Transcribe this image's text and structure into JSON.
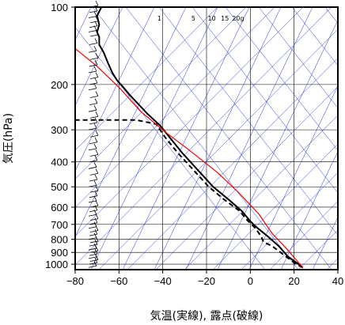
{
  "chart_data": {
    "type": "line",
    "diagram": "skew-t",
    "xlabel": "気温(実線), 露点(破線)",
    "ylabel": "気圧(hPa)",
    "xlim": [
      -80,
      40
    ],
    "ylim": [
      1050,
      100
    ],
    "y_scale": "log",
    "x_ticks": [
      "−80",
      "−60",
      "−40",
      "−20",
      "0",
      "20",
      "40"
    ],
    "x_tick_values": [
      -80,
      -60,
      -40,
      -20,
      0,
      20,
      40
    ],
    "y_ticks": [
      "100",
      "200",
      "300",
      "400",
      "500",
      "600",
      "700",
      "800",
      "900",
      "1000"
    ],
    "y_tick_values": [
      100,
      200,
      300,
      400,
      500,
      600,
      700,
      800,
      900,
      1000
    ],
    "mixing_ratio_labels": [
      "1",
      "5",
      "10",
      "15",
      "20g"
    ],
    "colors": {
      "temperature": "#000000",
      "dewpoint": "#000000",
      "reference_line": "#ee0000",
      "adiabats": "#1f2fd8",
      "grid": "#000000"
    },
    "series": [
      {
        "role": "temperature",
        "style": "solid",
        "points": [
          [
            24,
            1030
          ],
          [
            22,
            1000
          ],
          [
            17,
            930
          ],
          [
            13,
            850
          ],
          [
            8,
            780
          ],
          [
            3,
            720
          ],
          [
            0,
            680
          ],
          [
            -4,
            620
          ],
          [
            -10,
            560
          ],
          [
            -17,
            500
          ],
          [
            -24,
            430
          ],
          [
            -31,
            370
          ],
          [
            -37,
            320
          ],
          [
            -41,
            290
          ],
          [
            -47,
            260
          ],
          [
            -55,
            220
          ],
          [
            -58,
            205
          ],
          [
            -61,
            192
          ],
          [
            -63,
            180
          ],
          [
            -65,
            165
          ],
          [
            -67,
            150
          ],
          [
            -69,
            140
          ],
          [
            -69,
            131
          ],
          [
            -70,
            125
          ],
          [
            -69,
            117
          ],
          [
            -70,
            108
          ],
          [
            -68,
            100
          ]
        ]
      },
      {
        "role": "dewpoint",
        "style": "dashed",
        "points": [
          [
            24,
            1030
          ],
          [
            21,
            1000
          ],
          [
            16,
            930
          ],
          [
            10,
            850
          ],
          [
            6,
            820
          ],
          [
            5,
            780
          ],
          [
            2,
            720
          ],
          [
            -1,
            680
          ],
          [
            -5,
            620
          ],
          [
            -12,
            560
          ],
          [
            -19,
            500
          ],
          [
            -26,
            430
          ],
          [
            -33,
            370
          ],
          [
            -39,
            320
          ],
          [
            -43,
            285
          ],
          [
            -52,
            275
          ],
          [
            -83,
            275
          ]
        ]
      },
      {
        "role": "reference",
        "style": "solid",
        "points": [
          [
            24,
            1030
          ],
          [
            16,
            860
          ],
          [
            10,
            760
          ],
          [
            4,
            640
          ],
          [
            -5,
            530
          ],
          [
            -15,
            440
          ],
          [
            -27,
            365
          ],
          [
            -38,
            310
          ],
          [
            -50,
            255
          ],
          [
            -60,
            205
          ],
          [
            -70,
            170
          ],
          [
            -80,
            145
          ]
        ]
      }
    ],
    "wind_barbs_pressures": [
      1030,
      1000,
      975,
      950,
      925,
      900,
      880,
      850,
      825,
      800,
      775,
      750,
      725,
      700,
      675,
      650,
      625,
      600,
      575,
      550,
      525,
      500,
      475,
      450,
      425,
      400,
      380,
      360,
      340,
      320,
      300,
      285,
      270,
      255,
      240,
      225,
      210,
      200,
      190,
      180,
      170,
      160,
      150,
      140,
      130,
      125,
      120,
      115,
      110,
      105,
      100
    ]
  }
}
